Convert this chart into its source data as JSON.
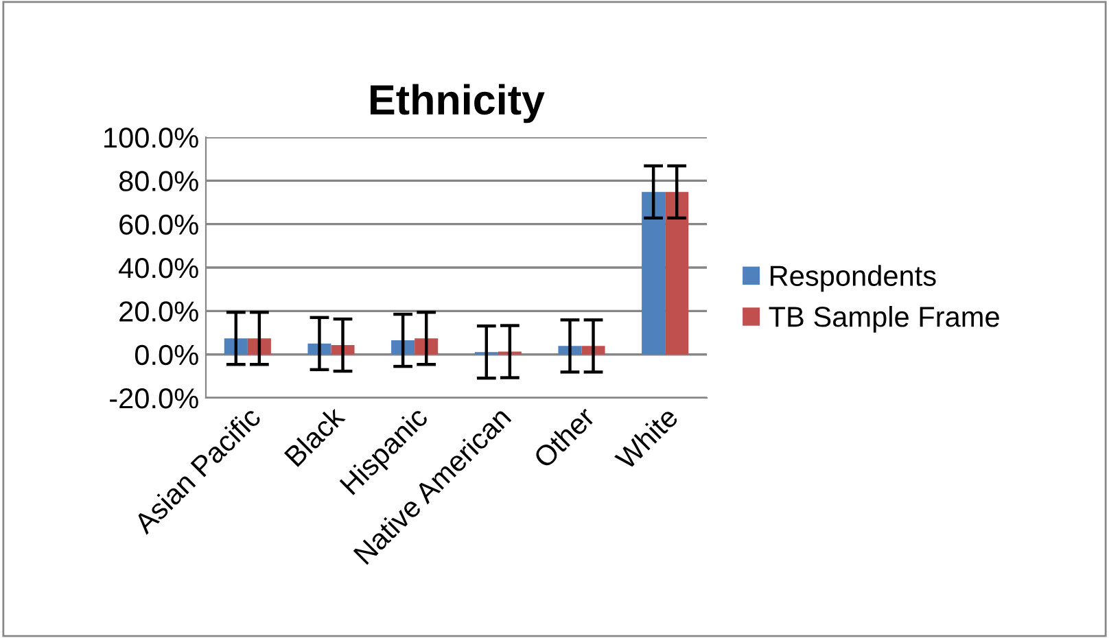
{
  "chart_data": {
    "type": "bar",
    "title": "Ethnicity",
    "categories": [
      "Asian Pacific",
      "Black",
      "Hispanic",
      "Native American",
      "Other",
      "White"
    ],
    "series": [
      {
        "name": "Respondents",
        "color": "#4f81bd",
        "values": [
          7.4,
          5.0,
          6.5,
          1.1,
          3.9,
          74.8
        ],
        "errors": [
          12,
          12,
          12,
          12,
          12,
          12
        ]
      },
      {
        "name": "TB Sample Frame",
        "color": "#c0504d",
        "values": [
          7.4,
          4.3,
          7.4,
          1.3,
          3.9,
          74.8
        ],
        "errors": [
          12,
          12,
          12,
          12,
          12,
          12
        ]
      }
    ],
    "ylim": [
      -20,
      100
    ],
    "yticks": [
      {
        "value": -20,
        "label": "-20.0%"
      },
      {
        "value": 0,
        "label": "0.0%"
      },
      {
        "value": 20,
        "label": "20.0%"
      },
      {
        "value": 40,
        "label": "40.0%"
      },
      {
        "value": 60,
        "label": "60.0%"
      },
      {
        "value": 80,
        "label": "80.0%"
      },
      {
        "value": 100,
        "label": "100.0%"
      }
    ],
    "grid": "y",
    "legend": "right"
  }
}
